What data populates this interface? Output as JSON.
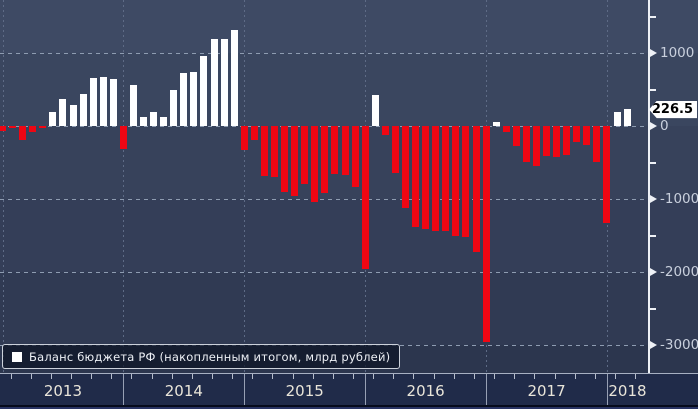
{
  "legend": {
    "label": "Баланс бюджета РФ (накопленным итогом, млрд рублей)",
    "swatch_color": "#ffffff"
  },
  "badge": {
    "value": "226.5"
  },
  "y_axis": {
    "major_ticks": [
      {
        "label": "1000",
        "value": 1000
      },
      {
        "label": "0",
        "value": 0
      },
      {
        "label": "-1000",
        "value": -1000
      },
      {
        "label": "-2000",
        "value": -2000
      },
      {
        "label": "-3000",
        "value": -3000
      }
    ],
    "minor_tick_values": [
      1500,
      500,
      -500,
      -1500,
      -2500
    ]
  },
  "x_axis": {
    "year_labels": [
      "2013",
      "2014",
      "2015",
      "2016",
      "2017",
      "2018"
    ]
  },
  "colors": {
    "positive_bar": "#ffffff",
    "negative_bar": "#ef0613",
    "badge_bg": "#ffffff",
    "badge_text": "#000000",
    "grid_h": "#8e9cb1",
    "grid_v": "#5e6b86",
    "axis_line": "#eef1f6",
    "axis_label": "#c9d0dd",
    "year_label": "#e9e5d9",
    "band_bg": [
      "#3e4a64",
      "#3a465f",
      "#37425b",
      "#343e58",
      "#303a53",
      "#2c364e"
    ]
  },
  "chart_data": {
    "type": "bar",
    "title": "Баланс бюджета РФ (накопленным итогом, млрд рублей)",
    "ylabel": "млрд рублей",
    "unit": "млрд рублей",
    "legend_position": "bottom-left",
    "grid": true,
    "gridline_values": [
      1000,
      0,
      -1000,
      -2000,
      -3000
    ],
    "ylim": [
      -3400,
      1725
    ],
    "last_value": 226.5,
    "x": [
      "2012-12",
      "2013-01",
      "2013-02",
      "2013-03",
      "2013-04",
      "2013-05",
      "2013-06",
      "2013-07",
      "2013-08",
      "2013-09",
      "2013-10",
      "2013-11",
      "2013-12",
      "2014-01",
      "2014-02",
      "2014-03",
      "2014-04",
      "2014-05",
      "2014-06",
      "2014-07",
      "2014-08",
      "2014-09",
      "2014-10",
      "2014-11",
      "2014-12",
      "2015-01",
      "2015-02",
      "2015-03",
      "2015-04",
      "2015-05",
      "2015-06",
      "2015-07",
      "2015-08",
      "2015-09",
      "2015-10",
      "2015-11",
      "2015-12",
      "2016-01",
      "2016-02",
      "2016-03",
      "2016-04",
      "2016-05",
      "2016-06",
      "2016-07",
      "2016-08",
      "2016-09",
      "2016-10",
      "2016-11",
      "2016-12",
      "2017-01",
      "2017-02",
      "2017-03",
      "2017-04",
      "2017-05",
      "2017-06",
      "2017-07",
      "2017-08",
      "2017-09",
      "2017-10",
      "2017-11",
      "2017-12",
      "2018-01",
      "2018-02"
    ],
    "values": [
      -70,
      -20,
      -190,
      -80,
      -25,
      190,
      370,
      290,
      440,
      660,
      665,
      645,
      -310,
      560,
      125,
      190,
      120,
      490,
      730,
      745,
      965,
      1185,
      1190,
      1315,
      -330,
      -190,
      -685,
      -700,
      -900,
      -955,
      -795,
      -1035,
      -915,
      -660,
      -670,
      -840,
      -1960,
      425,
      -125,
      -650,
      -1125,
      -1390,
      -1415,
      -1435,
      -1440,
      -1500,
      -1515,
      -1730,
      -2955,
      50,
      -85,
      -270,
      -495,
      -550,
      -405,
      -430,
      -395,
      -225,
      -260,
      -490,
      -1335,
      195,
      226.5
    ]
  }
}
